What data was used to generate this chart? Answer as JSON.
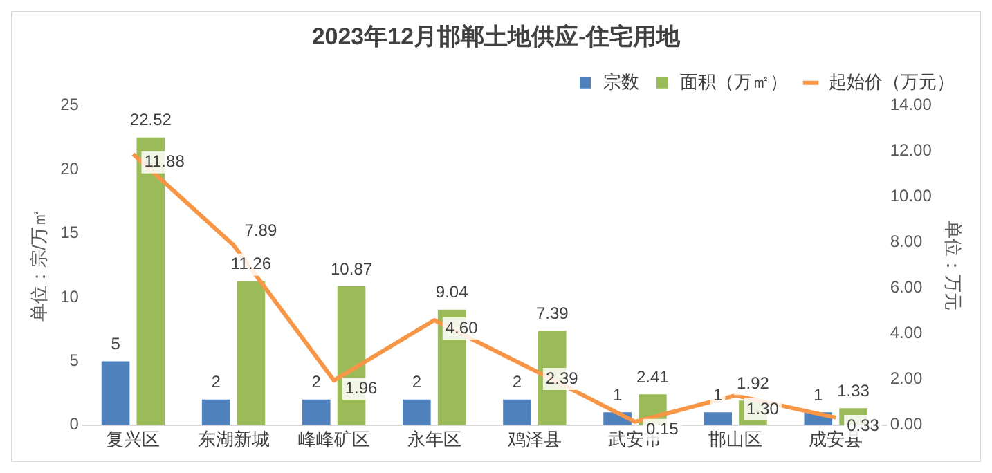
{
  "chart_data": {
    "type": "bar",
    "title": "2023年12月邯郸土地供应-住宅用地",
    "ylabel": "单位：宗/万㎡",
    "y2label": "单位：万元",
    "categories": [
      "复兴区",
      "东湖新城",
      "峰峰矿区",
      "永年区",
      "鸡泽县",
      "武安市",
      "邯山区",
      "成安县"
    ],
    "series": [
      {
        "name": "宗数",
        "color": "#4f81bd",
        "values": [
          5,
          2,
          2,
          2,
          2,
          1,
          1,
          1
        ],
        "value_labels": [
          "5",
          "2",
          "2",
          "2",
          "2",
          "1",
          "1",
          "1"
        ]
      },
      {
        "name": "面积（万㎡）",
        "color": "#9bbb59",
        "values": [
          22.52,
          11.26,
          10.87,
          9.04,
          7.39,
          2.41,
          1.92,
          1.33
        ],
        "value_labels": [
          "22.52",
          "11.26",
          "10.87",
          "9.04",
          "7.39",
          "2.41",
          "1.92",
          "1.33"
        ]
      },
      {
        "name": "起始价（万元）",
        "type": "line",
        "axis": "y2",
        "color": "#f79646",
        "marker": "none",
        "values": [
          11.88,
          7.89,
          1.96,
          4.6,
          2.39,
          0.15,
          1.3,
          0.33
        ],
        "value_labels": [
          "11.88",
          "7.89",
          "1.96",
          "4.60",
          "2.39",
          "0.15",
          "1.30",
          "0.33"
        ]
      }
    ],
    "ylim": [
      0,
      25
    ],
    "yticks": [
      0,
      5,
      10,
      15,
      20,
      25
    ],
    "y2lim": [
      0,
      14
    ],
    "y2ticks": [
      {
        "value": 0,
        "label": "0.00"
      },
      {
        "value": 2,
        "label": "2.00"
      },
      {
        "value": 4,
        "label": "4.00"
      },
      {
        "value": 6,
        "label": "6.00"
      },
      {
        "value": 8,
        "label": "8.00"
      },
      {
        "value": 10,
        "label": "10.00"
      },
      {
        "value": 12,
        "label": "12.00"
      },
      {
        "value": 14,
        "label": "14.00"
      }
    ],
    "grid": false,
    "legend": "top"
  }
}
